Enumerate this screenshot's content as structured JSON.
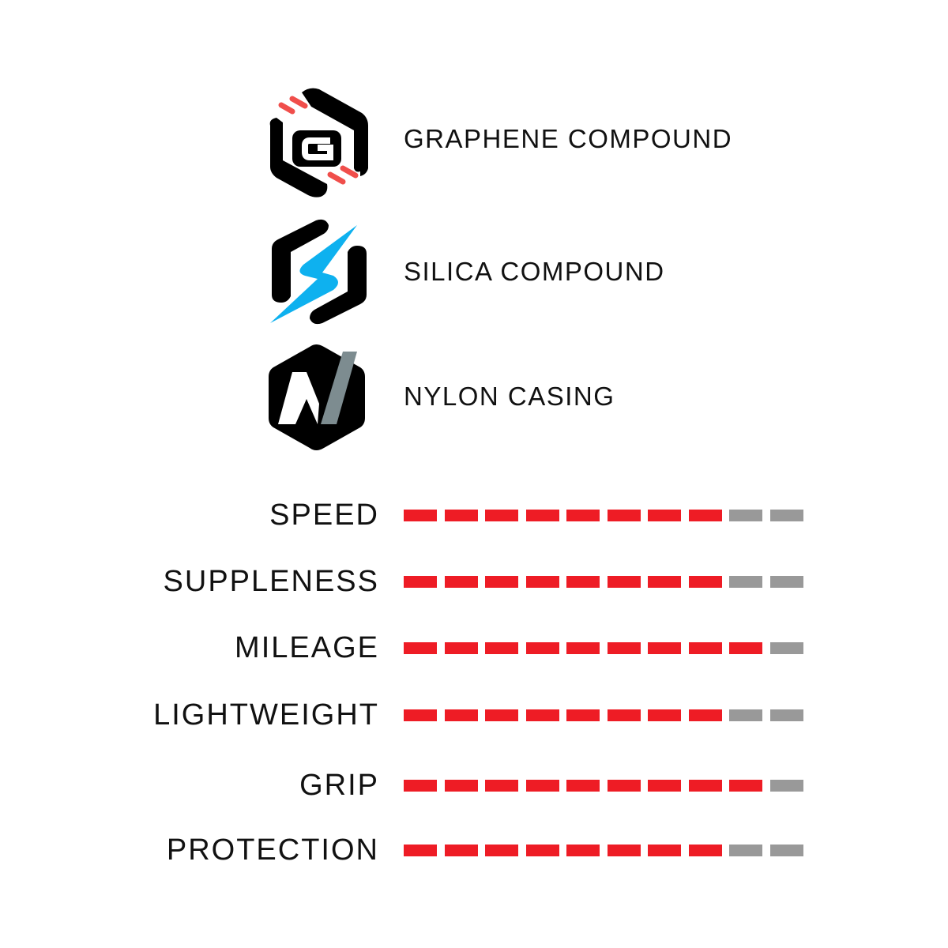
{
  "features": [
    {
      "label": "GRAPHENE COMPOUND",
      "icon": "graphene-g-hexagon-icon",
      "accent": "#f04e4b"
    },
    {
      "label": "SILICA COMPOUND",
      "icon": "silica-lightning-hexagon-icon",
      "accent": "#0eb1ef"
    },
    {
      "label": "NYLON CASING",
      "icon": "nylon-n-hexagon-icon",
      "accent": "#7d8c90"
    }
  ],
  "ratings_max": 10,
  "colors": {
    "filled": "#ee1c25",
    "empty": "#999999"
  },
  "ratings": [
    {
      "label": "SPEED",
      "value": 8
    },
    {
      "label": "SUPPLENESS",
      "value": 8
    },
    {
      "label": "MILEAGE",
      "value": 9
    },
    {
      "label": "LIGHTWEIGHT",
      "value": 8
    },
    {
      "label": "GRIP",
      "value": 9
    },
    {
      "label": "PROTECTION",
      "value": 8
    }
  ]
}
